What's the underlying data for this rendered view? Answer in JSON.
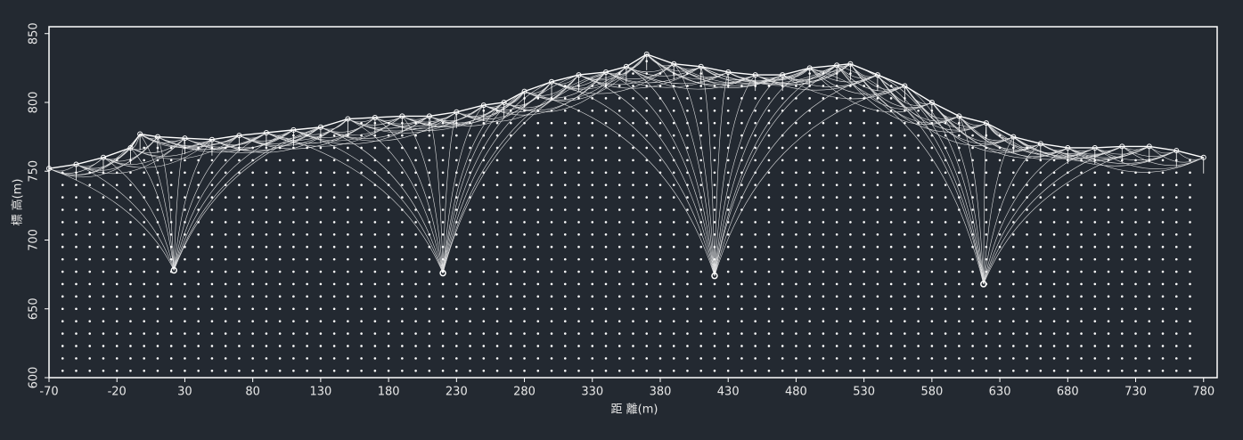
{
  "chart_data": {
    "type": "ray-diagram",
    "x_label": "距 離(m)",
    "y_label": "標 高(m)",
    "xlim": [
      -70,
      790
    ],
    "ylim": [
      600,
      855
    ],
    "xticks": [
      -70,
      -20,
      30,
      80,
      130,
      180,
      230,
      280,
      330,
      380,
      430,
      480,
      530,
      580,
      630,
      680,
      730,
      780
    ],
    "yticks": [
      600,
      650,
      700,
      750,
      800,
      850
    ],
    "color": "#ffffff",
    "surface": {
      "x": [
        -70,
        -50,
        -30,
        -10,
        -3,
        10,
        30,
        50,
        70,
        90,
        110,
        130,
        150,
        170,
        190,
        210,
        230,
        250,
        265,
        280,
        300,
        320,
        340,
        355,
        370,
        390,
        410,
        430,
        450,
        470,
        490,
        510,
        520,
        540,
        560,
        580,
        600,
        620,
        640,
        660,
        680,
        700,
        720,
        740,
        760,
        780
      ],
      "values": [
        752,
        755,
        760,
        767,
        777,
        775,
        774,
        773,
        776,
        778,
        780,
        782,
        788,
        789,
        790,
        790,
        793,
        798,
        800,
        808,
        815,
        820,
        822,
        826,
        835,
        828,
        826,
        822,
        820,
        820,
        825,
        827,
        828,
        820,
        812,
        800,
        790,
        785,
        775,
        770,
        767,
        767,
        768,
        768,
        765,
        760
      ]
    },
    "shots": {
      "x": [
        22,
        220,
        420,
        618
      ],
      "values": [
        678,
        676,
        674,
        668
      ]
    }
  }
}
